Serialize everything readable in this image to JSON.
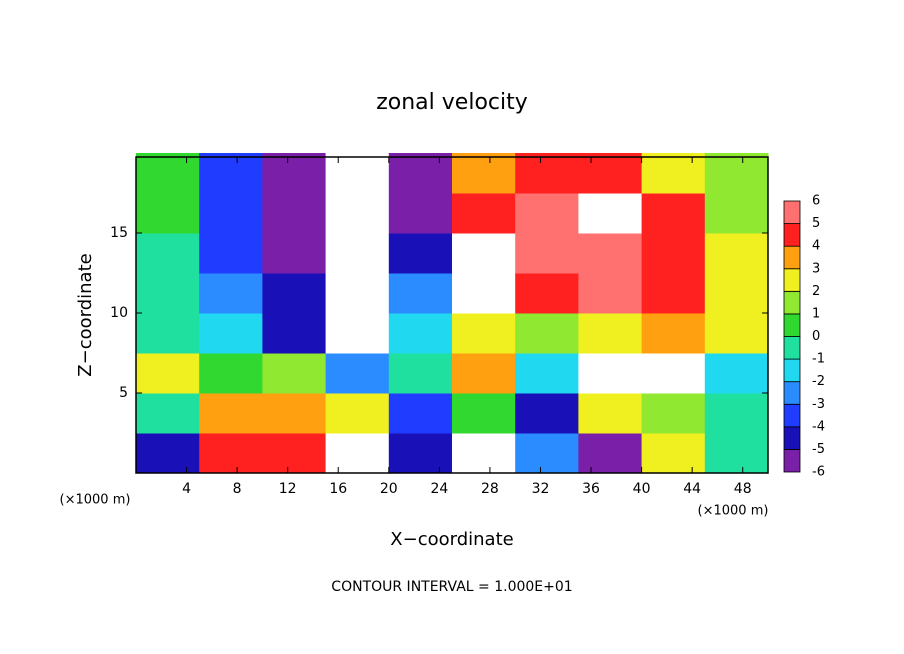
{
  "chart_data": {
    "type": "heatmap",
    "title": "zonal velocity",
    "x_label": "X−coordinate",
    "y_label": "Z−coordinate",
    "x_unit_left": "(×1000 m)",
    "x_unit_right": "(×1000 m)",
    "footer": "CONTOUR INTERVAL = 1.000E+01",
    "xlim": [
      0,
      50
    ],
    "ylim": [
      0,
      19.75
    ],
    "xticks": [
      4,
      8,
      12,
      16,
      20,
      24,
      28,
      32,
      36,
      40,
      44,
      48
    ],
    "yticks": [
      5,
      10,
      15
    ],
    "x": [
      2.5,
      7.5,
      12.5,
      17.5,
      22.5,
      27.5,
      32.5,
      37.5,
      42.5,
      47.5
    ],
    "y": [
      1.25,
      3.75,
      6.25,
      8.75,
      11.25,
      13.75,
      16.25,
      18.75
    ],
    "z": [
      [
        -4,
        5,
        5,
        7,
        -4,
        -7,
        -2,
        -5,
        3,
        0
      ],
      [
        0,
        4,
        4,
        3,
        -3,
        1,
        -4,
        3,
        2,
        0
      ],
      [
        3,
        1,
        2,
        -2,
        0,
        4,
        -1,
        7,
        7,
        -1
      ],
      [
        0,
        -1,
        -4,
        -7,
        -1,
        3,
        2,
        3,
        4,
        3
      ],
      [
        -0.5,
        -2,
        -4,
        -7,
        -2,
        7,
        5,
        6,
        5,
        3
      ],
      [
        0,
        -3,
        -5,
        -7,
        -4,
        7,
        6,
        6,
        5,
        3
      ],
      [
        0.5,
        -3,
        -5,
        -7,
        -5,
        5,
        6,
        7,
        5,
        2
      ],
      [
        0.5,
        -3,
        -5,
        -7,
        -6,
        4,
        5,
        5,
        3,
        2
      ]
    ],
    "colorbar": {
      "ticks": [
        -6,
        -5,
        -4,
        -3,
        -2,
        -1,
        0,
        1,
        2,
        3,
        4,
        5,
        6
      ],
      "colors": [
        "#7a1fa8",
        "#1a10b8",
        "#1f3cff",
        "#2a8cff",
        "#20d8f0",
        "#20e0a0",
        "#30d830",
        "#90e830",
        "#f0f020",
        "#ffa010",
        "#ff2020",
        "#ff7070"
      ]
    }
  }
}
